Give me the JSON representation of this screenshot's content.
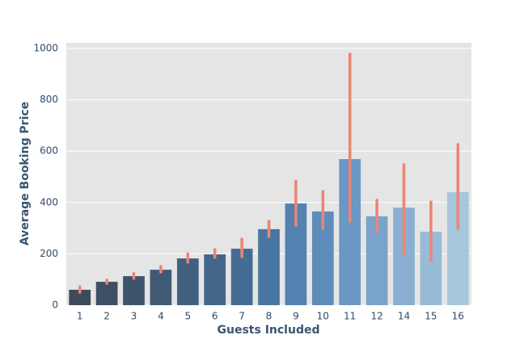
{
  "chart_data": {
    "type": "bar",
    "xlabel": "Guests Included",
    "ylabel": "Average Booking Price",
    "categories": [
      "1",
      "2",
      "3",
      "4",
      "5",
      "6",
      "7",
      "8",
      "9",
      "10",
      "11",
      "12",
      "14",
      "15",
      "16"
    ],
    "values": [
      60,
      91,
      113,
      138,
      182,
      198,
      220,
      296,
      396,
      365,
      569,
      346,
      380,
      286,
      440
    ],
    "ci_low": [
      50,
      85,
      104,
      129,
      167,
      186,
      189,
      267,
      311,
      299,
      327,
      283,
      201,
      173,
      299
    ],
    "ci_high": [
      72,
      98,
      123,
      151,
      201,
      217,
      258,
      327,
      484,
      443,
      978,
      409,
      547,
      402,
      626
    ],
    "colors": [
      "#3c4a5a",
      "#3d4f62",
      "#3e546b",
      "#405a75",
      "#41607f",
      "#436689",
      "#456d94",
      "#4876a2",
      "#5482b0",
      "#5f8dbb",
      "#6b97c4",
      "#7aa3cb",
      "#89afd2",
      "#98bbd7",
      "#a6c6dc"
    ],
    "error_color": "#ec8575",
    "ylim": [
      0,
      1022
    ],
    "yticks": [
      0,
      200,
      400,
      600,
      800,
      1000
    ],
    "grid": true
  }
}
